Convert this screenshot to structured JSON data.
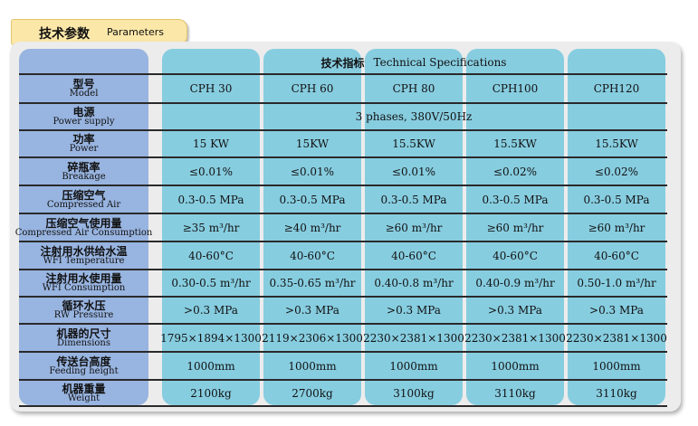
{
  "header": {
    "title_cn": "技术参数",
    "title_en": "Parameters"
  },
  "table": {
    "spec_title_cn": "技术指标",
    "spec_title_en": "Technical Specifications",
    "rows": [
      {
        "cn": "型号",
        "en": "Model",
        "values": [
          "CPH 30",
          "CPH 60",
          "CPH 80",
          "CPH100",
          "CPH120"
        ]
      },
      {
        "cn": "电源",
        "en": "Power supply",
        "merged": "3 phases, 380V/50Hz"
      },
      {
        "cn": "功率",
        "en": "Power",
        "values": [
          "15 KW",
          "15KW",
          "15.5KW",
          "15.5KW",
          "15.5KW"
        ]
      },
      {
        "cn": "碎瓶率",
        "en": "Breakage",
        "values": [
          "≤0.01%",
          "≤0.01%",
          "≤0.01%",
          "≤0.02%",
          "≤0.02%"
        ]
      },
      {
        "cn": "压缩空气",
        "en": "Compressed Air",
        "values": [
          "0.3-0.5 MPa",
          "0.3-0.5 MPa",
          "0.3-0.5 MPa",
          "0.3-0.5 MPa",
          "0.3-0.5 MPa"
        ]
      },
      {
        "cn": "压缩空气使用量",
        "en": "Compressed Air Consumption",
        "values": [
          "≥35 m³/hr",
          "≥40 m³/hr",
          "≥60 m³/hr",
          "≥60 m³/hr",
          "≥60 m³/hr"
        ]
      },
      {
        "cn": "注射用水供给水温",
        "en": "WFI Temperature",
        "values": [
          "40-60°C",
          "40-60°C",
          "40-60°C",
          "40-60°C",
          "40-60°C"
        ]
      },
      {
        "cn": "注射用水使用量",
        "en": "WFI Consumption",
        "values": [
          "0.30-0.5 m³/hr",
          "0.35-0.65 m³/hr",
          "0.40-0.8 m³/hr",
          "0.40-0.9 m³/hr",
          "0.50-1.0 m³/hr"
        ]
      },
      {
        "cn": "循环水压",
        "en": "RW Pressure",
        "values": [
          ">0.3 MPa",
          ">0.3 MPa",
          ">0.3 MPa",
          ">0.3 MPa",
          ">0.3 MPa"
        ]
      },
      {
        "cn": "机器的尺寸",
        "en": "Dimensions",
        "values": [
          "1795×1894×1300",
          "2119×2306×1300",
          "2230×2381×1300",
          "2230×2381×1300",
          "2230×2381×1300"
        ]
      },
      {
        "cn": "传送台高度",
        "en": "Feeding height",
        "values": [
          "1000mm",
          "1000mm",
          "1000mm",
          "1000mm",
          "1000mm"
        ]
      },
      {
        "cn": "机器重量",
        "en": "Weight",
        "values": [
          "2100kg",
          "2700kg",
          "3100kg",
          "3110kg",
          "3110kg"
        ]
      }
    ]
  },
  "colors": {
    "label_column": "#98b4e0",
    "data_column": "#87cde0",
    "tab": "#fbe7a8",
    "panel": "#ececec"
  }
}
